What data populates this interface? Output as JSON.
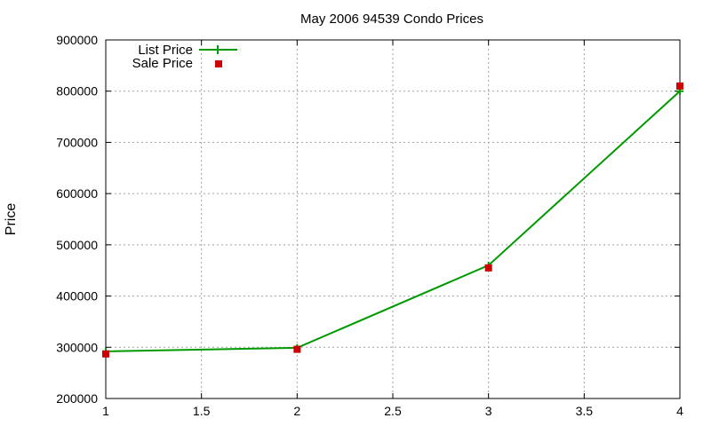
{
  "chart_data": {
    "type": "line",
    "title": "May 2006 94539 Condo Prices",
    "xlabel": "",
    "ylabel": "Price",
    "xlim": [
      1,
      4
    ],
    "ylim": [
      200000,
      900000
    ],
    "x_ticks": [
      "1",
      "1.5",
      "2",
      "2.5",
      "3",
      "3.5",
      "4"
    ],
    "y_ticks": [
      "200000",
      "300000",
      "400000",
      "500000",
      "600000",
      "700000",
      "800000",
      "900000"
    ],
    "grid": true,
    "legend_position": "top-left",
    "series": [
      {
        "name": "List Price",
        "style": "line",
        "color": "#009900",
        "x": [
          1,
          2,
          3,
          4
        ],
        "y": [
          292000,
          299000,
          460000,
          800000
        ]
      },
      {
        "name": "Sale Price",
        "style": "points",
        "color": "#cc0000",
        "x": [
          1,
          2,
          3,
          4
        ],
        "y": [
          287000,
          296000,
          455000,
          810000
        ]
      }
    ]
  }
}
